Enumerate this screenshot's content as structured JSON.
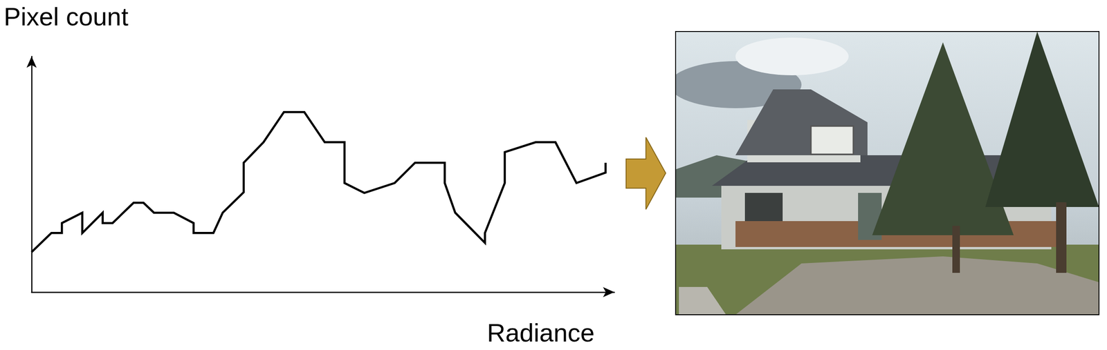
{
  "chart_data": {
    "type": "line",
    "xlabel": "Radiance",
    "ylabel": "Pixel count",
    "x": [
      0,
      3.4,
      5.2,
      5.2,
      8.7,
      8.7,
      12.2,
      12.2,
      13.9,
      17.5,
      19.2,
      21.0,
      24.4,
      27.8,
      27.8,
      31.2,
      32.8,
      36.4,
      36.4,
      39.8,
      43.3,
      46.8,
      50.3,
      53.7,
      53.7,
      57.1,
      62.3,
      65.8,
      70.9,
      70.9,
      72.7,
      77.8,
      77.8,
      81.2,
      81.2,
      86.5,
      89.9,
      93.5,
      98.5,
      98.5
    ],
    "values": [
      17.0,
      25.1,
      25.1,
      29.3,
      33.7,
      25.1,
      33.7,
      29.3,
      29.3,
      37.9,
      37.9,
      33.7,
      33.7,
      29.3,
      25.1,
      25.1,
      33.7,
      42.4,
      54.9,
      63.6,
      76.4,
      76.4,
      63.6,
      63.6,
      46.3,
      42.1,
      46.3,
      54.9,
      54.9,
      46.3,
      33.7,
      20.9,
      25.1,
      46.3,
      59.4,
      63.6,
      63.6,
      46.3,
      50.7,
      54.9
    ],
    "xlim": [
      0,
      100
    ],
    "ylim": [
      0,
      100
    ],
    "xticks": [],
    "yticks": [],
    "tick_labels": false,
    "grid": false,
    "color": "#000000"
  }
}
